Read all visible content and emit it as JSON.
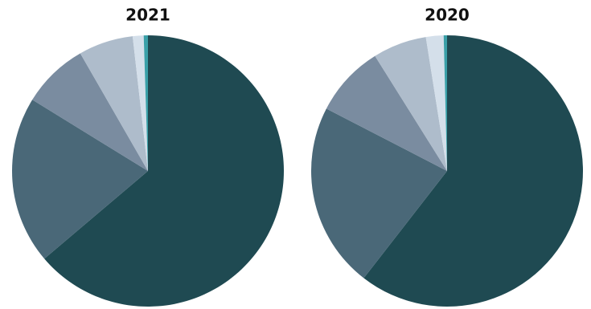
{
  "chart_data": [
    {
      "type": "pie",
      "title": "2021",
      "values": [
        63.8,
        20.0,
        7.9,
        6.5,
        1.3,
        0.5
      ],
      "colors": [
        "#1f4a52",
        "#4a6878",
        "#7a8ca0",
        "#aebccb",
        "#d4dfea",
        "#3aa0a8"
      ]
    },
    {
      "type": "pie",
      "title": "2020",
      "values": [
        60.5,
        22.1,
        8.5,
        6.4,
        2.1,
        0.4
      ],
      "colors": [
        "#1f4a52",
        "#4a6878",
        "#7a8ca0",
        "#aebccb",
        "#d4dfea",
        "#3aa0a8"
      ]
    }
  ]
}
